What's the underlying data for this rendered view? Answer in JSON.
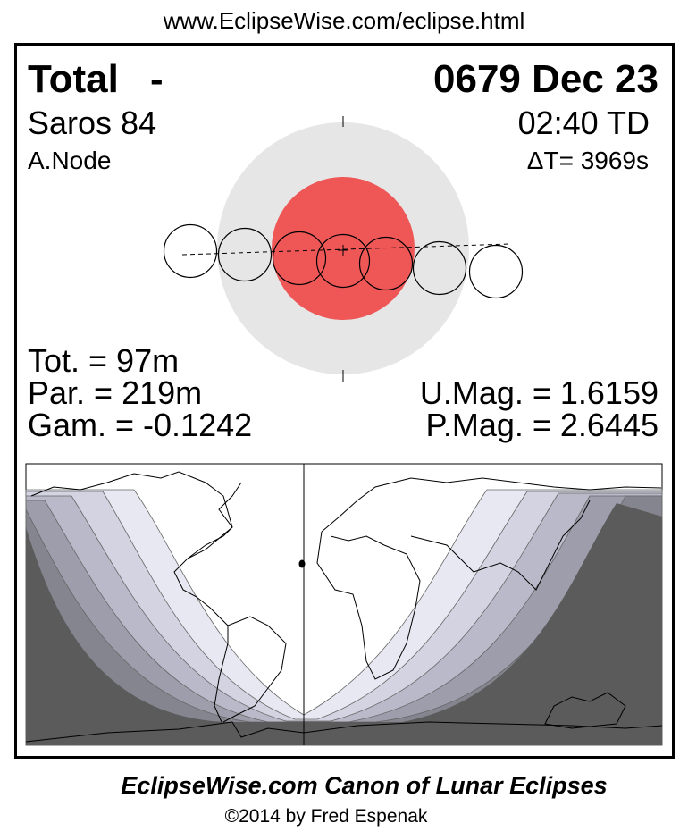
{
  "header_url": "www.EclipseWise.com/eclipse.html",
  "eclipse": {
    "type": "Total",
    "dash": "-",
    "date": "0679 Dec 23",
    "saros": "Saros  84",
    "time": "02:40 TD",
    "node": "A.Node",
    "delta_t": "ΔT=   3969s",
    "totality": "Tot. =  97m",
    "partial": "Par. = 219m",
    "gamma": "Gam. = -0.1242",
    "umbral_mag": "U.Mag. = 1.6159",
    "penumbral_mag": "P.Mag. = 2.6445"
  },
  "colors": {
    "umbra": "#ef5757",
    "penumbra": "#e6e6e6",
    "map_bands": [
      "#e8e8f2",
      "#d3d3e1",
      "#b9b9c9",
      "#9d9dac",
      "#85858f",
      "#5b5b5b"
    ]
  },
  "footer": {
    "title": "EclipseWise.com Canon of Lunar Eclipses",
    "copyright": "©2014 by Fred Espenak"
  }
}
